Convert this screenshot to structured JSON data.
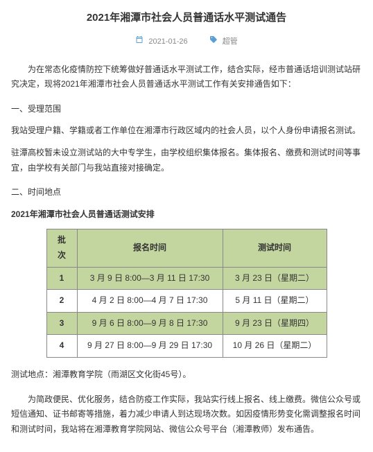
{
  "title": "2021年湘潭市社会人员普通话水平测试通告",
  "meta": {
    "date": "2021-01-26",
    "author": "超管"
  },
  "intro": "为在常态化疫情防控下统筹做好普通话水平测试工作，结合实际，经市普通话培训测试站研究决定，现将2021年湘潭市社会人员普通话水平测试工作有关安排通告如下：",
  "sec1_head": "一、受理范围",
  "sec1_p1": "我站受理户籍、学籍或者工作单位在湘潭市行政区域内的社会人员，以个人身份申请报名测试。",
  "sec1_p2": "驻潭高校暂未设立测试站的大中专学生，由学校组织集体报名。集体报名、缴费和测试时间等事宜，由学校有关部门与我站直接对接确定。",
  "sec2_head": "二、时间地点",
  "sec2_sub": "2021年湘潭市社会人员普通话测试安排",
  "table": {
    "headers": [
      "批次",
      "报名时间",
      "测试时间"
    ],
    "rows": [
      {
        "batch": "1",
        "apply": "3 月 9 日 8:00—3 月 11 日 17:30",
        "test": "3 月 23 日（星期二）",
        "stripe": true
      },
      {
        "batch": "2",
        "apply": "4 月 2 日 8:00—4 月 7 日 17:30",
        "test": "5 月 11 日（星期二）",
        "stripe": false
      },
      {
        "batch": "3",
        "apply": "9 月 6 日 8:00—9 月 8 日 17:30",
        "test": "9 月 23 日（星期四）",
        "stripe": true
      },
      {
        "batch": "4",
        "apply": "9 月 27 日 8:00—9 月 29 日 17:30",
        "test": "10 月 26 日（星期二）",
        "stripe": false
      }
    ]
  },
  "location": "测试地点：湘潭教育学院（雨湖区文化街45号）。",
  "outro": "为简政便民、优化服务，结合防疫工作实际，我站实行线上报名、线上缴费。微信公众号或短信通知、证书邮寄等措施，着力减少申请人到达现场次数。如因疫情形势变化需调整报名时间和测试时间，我站将在湘潭教育学院网站、微信公众号平台（湘潭教师）发布通告。"
}
